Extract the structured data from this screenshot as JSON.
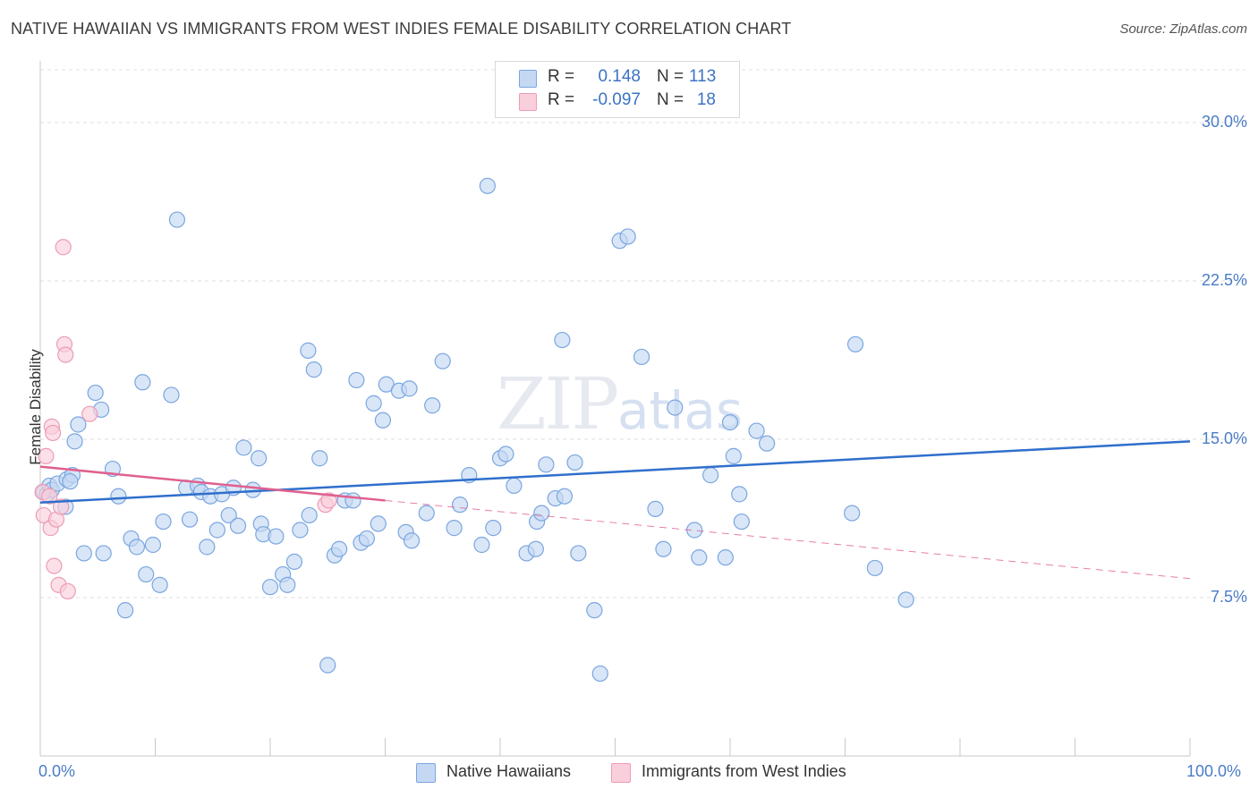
{
  "chart_data": {
    "type": "scatter",
    "title": "NATIVE HAWAIIAN VS IMMIGRANTS FROM WEST INDIES FEMALE DISABILITY CORRELATION CHART",
    "source": "Source: ZipAtlas.com",
    "xlabel": "",
    "ylabel": "Female Disability",
    "xlim": [
      0,
      100
    ],
    "ylim": [
      0,
      32.5
    ],
    "x_tick_labels": [
      "0.0%",
      "100.0%"
    ],
    "y_ticks": [
      7.5,
      15.0,
      22.5,
      30.0
    ],
    "y_tick_labels": [
      "7.5%",
      "15.0%",
      "22.5%",
      "30.0%"
    ],
    "grid": true,
    "watermark": {
      "zip": "ZIP",
      "atlas": "atlas"
    },
    "stats": [
      {
        "r_label": "R =",
        "r_value": "0.148",
        "n_label": "N =",
        "n_value": "113"
      },
      {
        "r_label": "R =",
        "r_value": "-0.097",
        "n_label": "N =",
        "n_value": "18"
      }
    ],
    "series": [
      {
        "name": "Native Hawaiians",
        "color": "#7aa6e0",
        "fill": "#c5d8f3",
        "trend": {
          "x0": 0,
          "y0": 12.0,
          "x1": 100,
          "y1": 14.9,
          "style": "solid",
          "color": "#2f6fcc"
        },
        "points": [
          [
            0.3,
            12.5
          ],
          [
            0.6,
            12.4
          ],
          [
            0.8,
            12.8
          ],
          [
            1.0,
            12.6
          ],
          [
            1.5,
            12.9
          ],
          [
            2.2,
            11.8
          ],
          [
            2.3,
            13.1
          ],
          [
            2.8,
            13.3
          ],
          [
            2.6,
            13.0
          ],
          [
            3.0,
            14.9
          ],
          [
            3.3,
            15.7
          ],
          [
            3.8,
            9.6
          ],
          [
            4.8,
            17.2
          ],
          [
            5.3,
            16.4
          ],
          [
            5.5,
            9.6
          ],
          [
            6.3,
            13.6
          ],
          [
            6.8,
            12.3
          ],
          [
            7.4,
            6.9
          ],
          [
            7.9,
            10.3
          ],
          [
            8.4,
            9.9
          ],
          [
            8.9,
            17.7
          ],
          [
            9.2,
            8.6
          ],
          [
            9.8,
            10.0
          ],
          [
            10.4,
            8.1
          ],
          [
            10.7,
            11.1
          ],
          [
            11.4,
            17.1
          ],
          [
            11.9,
            25.4
          ],
          [
            12.7,
            12.7
          ],
          [
            13.0,
            11.2
          ],
          [
            13.7,
            12.8
          ],
          [
            14.0,
            12.5
          ],
          [
            14.5,
            9.9
          ],
          [
            14.8,
            12.3
          ],
          [
            15.4,
            10.7
          ],
          [
            15.8,
            12.4
          ],
          [
            16.4,
            11.4
          ],
          [
            16.8,
            12.7
          ],
          [
            17.2,
            10.9
          ],
          [
            17.7,
            14.6
          ],
          [
            18.5,
            12.6
          ],
          [
            19.0,
            14.1
          ],
          [
            19.2,
            11.0
          ],
          [
            19.4,
            10.5
          ],
          [
            20.0,
            8.0
          ],
          [
            20.5,
            10.4
          ],
          [
            21.1,
            8.6
          ],
          [
            21.5,
            8.1
          ],
          [
            22.1,
            9.2
          ],
          [
            22.6,
            10.7
          ],
          [
            23.3,
            19.2
          ],
          [
            23.4,
            11.4
          ],
          [
            23.8,
            18.3
          ],
          [
            24.3,
            14.1
          ],
          [
            25.0,
            4.3
          ],
          [
            25.6,
            9.5
          ],
          [
            26.0,
            9.8
          ],
          [
            26.5,
            12.1
          ],
          [
            27.2,
            12.1
          ],
          [
            27.5,
            17.8
          ],
          [
            27.9,
            10.1
          ],
          [
            28.4,
            10.3
          ],
          [
            29.0,
            16.7
          ],
          [
            29.4,
            11.0
          ],
          [
            29.8,
            15.9
          ],
          [
            30.1,
            17.6
          ],
          [
            31.2,
            17.3
          ],
          [
            31.8,
            10.6
          ],
          [
            32.3,
            10.2
          ],
          [
            32.1,
            17.4
          ],
          [
            33.6,
            11.5
          ],
          [
            34.1,
            16.6
          ],
          [
            35.0,
            18.7
          ],
          [
            36.0,
            10.8
          ],
          [
            36.5,
            11.9
          ],
          [
            37.3,
            13.3
          ],
          [
            38.4,
            10.0
          ],
          [
            38.9,
            27.0
          ],
          [
            39.4,
            10.8
          ],
          [
            40.0,
            14.1
          ],
          [
            40.5,
            14.3
          ],
          [
            41.2,
            12.8
          ],
          [
            42.3,
            9.6
          ],
          [
            43.1,
            9.8
          ],
          [
            43.2,
            11.1
          ],
          [
            43.6,
            11.5
          ],
          [
            44.0,
            13.8
          ],
          [
            44.8,
            12.2
          ],
          [
            45.4,
            19.7
          ],
          [
            45.6,
            12.3
          ],
          [
            46.5,
            13.9
          ],
          [
            46.8,
            9.6
          ],
          [
            48.7,
            3.9
          ],
          [
            48.2,
            6.9
          ],
          [
            50.4,
            24.4
          ],
          [
            51.1,
            24.6
          ],
          [
            52.3,
            18.9
          ],
          [
            53.5,
            11.7
          ],
          [
            54.2,
            9.8
          ],
          [
            55.2,
            16.5
          ],
          [
            56.9,
            10.7
          ],
          [
            57.3,
            9.4
          ],
          [
            58.3,
            13.3
          ],
          [
            59.6,
            9.4
          ],
          [
            60.0,
            15.8
          ],
          [
            60.3,
            14.2
          ],
          [
            60.8,
            12.4
          ],
          [
            61.0,
            11.1
          ],
          [
            62.3,
            15.4
          ],
          [
            63.2,
            14.8
          ],
          [
            70.6,
            11.5
          ],
          [
            70.9,
            19.5
          ],
          [
            72.6,
            8.9
          ],
          [
            75.3,
            7.4
          ]
        ]
      },
      {
        "name": "Immigrants from West Indies",
        "color": "#ee9bb6",
        "fill": "#f9cfdc",
        "trend": {
          "x0": 0,
          "y0": 13.7,
          "x1": 30,
          "y1": 12.1,
          "style": "solid",
          "color": "#e0608f",
          "extension": {
            "x1": 100,
            "y1": 8.4,
            "style": "dashed"
          }
        },
        "points": [
          [
            0.2,
            12.5
          ],
          [
            0.3,
            11.4
          ],
          [
            0.5,
            14.2
          ],
          [
            0.8,
            12.3
          ],
          [
            0.9,
            10.8
          ],
          [
            1.0,
            15.6
          ],
          [
            1.1,
            15.3
          ],
          [
            1.2,
            9.0
          ],
          [
            1.4,
            11.2
          ],
          [
            1.6,
            8.1
          ],
          [
            1.8,
            11.8
          ],
          [
            2.0,
            24.1
          ],
          [
            2.1,
            19.5
          ],
          [
            2.2,
            19.0
          ],
          [
            2.4,
            7.8
          ],
          [
            4.3,
            16.2
          ],
          [
            24.8,
            11.9
          ],
          [
            25.1,
            12.1
          ]
        ]
      }
    ]
  }
}
